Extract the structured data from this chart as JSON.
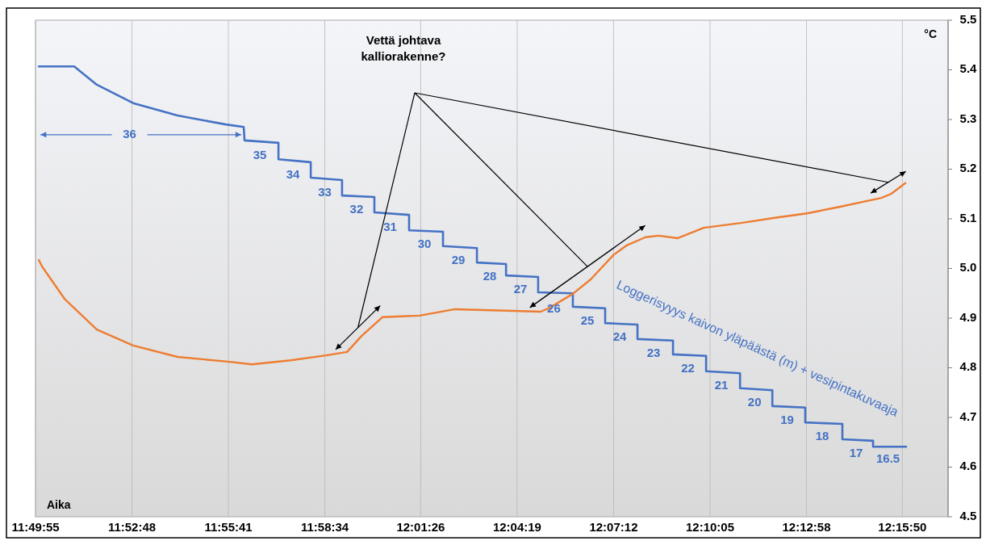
{
  "chart_data": {
    "type": "line",
    "xlabel": "Aika",
    "ylabel": "°C",
    "xlim": [
      11.831944,
      12.286667
    ],
    "xticks": [
      {
        "value": 11.831944,
        "label": "11:49:55"
      },
      {
        "value": 11.88,
        "label": "11:52:48"
      },
      {
        "value": 11.928056,
        "label": "11:55:41"
      },
      {
        "value": 11.976111,
        "label": "11:58:34"
      },
      {
        "value": 12.023889,
        "label": "12:01:26"
      },
      {
        "value": 12.071944,
        "label": "12:04:19"
      },
      {
        "value": 12.12,
        "label": "12:07:12"
      },
      {
        "value": 12.168056,
        "label": "12:10:05"
      },
      {
        "value": 12.216111,
        "label": "12:12:58"
      },
      {
        "value": 12.263889,
        "label": "12:15:50"
      }
    ],
    "ylim": [
      4.5,
      5.5
    ],
    "yticks": [
      4.5,
      4.6,
      4.7,
      4.8,
      4.9,
      {
        "value": 5,
        "label": "5.0"
      },
      5.1,
      5.2,
      5.3,
      5.4,
      5.5
    ],
    "grid": "x",
    "legend": false,
    "series": [
      {
        "name": "Loggerisyyys kaivon yläpäästä (m) + vesipintakuvaaja",
        "color": "#4472c4",
        "x": [
          11.8336,
          11.8512,
          11.8625,
          11.8806,
          11.9027,
          11.9268,
          11.9357,
          11.9361,
          11.953,
          11.953,
          11.9691,
          11.9691,
          11.9847,
          11.9847,
          12.0008,
          12.0008,
          12.0181,
          12.0181,
          12.035,
          12.035,
          12.0519,
          12.0519,
          12.0664,
          12.0664,
          12.0824,
          12.0824,
          12.0997,
          12.0997,
          12.1158,
          12.1158,
          12.1319,
          12.1319,
          12.1496,
          12.1496,
          12.1661,
          12.1661,
          12.183,
          12.183,
          12.1991,
          12.1991,
          12.2155,
          12.2155,
          12.234,
          12.234,
          12.2493,
          12.2493,
          12.2658
        ],
        "values": [
          5.407,
          5.407,
          5.37,
          5.333,
          5.308,
          5.29,
          5.285,
          5.258,
          5.253,
          5.22,
          5.214,
          5.183,
          5.178,
          5.147,
          5.144,
          5.113,
          5.108,
          5.077,
          5.074,
          5.045,
          5.041,
          5.012,
          5.009,
          4.986,
          4.983,
          4.952,
          4.95,
          4.923,
          4.92,
          4.89,
          4.887,
          4.858,
          4.855,
          4.827,
          4.824,
          4.793,
          4.789,
          4.759,
          4.755,
          4.723,
          4.72,
          4.69,
          4.687,
          4.656,
          4.653,
          4.641,
          4.641
        ]
      },
      {
        "color": "#ed7d31",
        "x": [
          11.8336,
          11.8352,
          11.8464,
          11.8625,
          11.8806,
          11.9027,
          11.9288,
          11.9397,
          11.959,
          11.9767,
          11.9872,
          11.9944,
          12.0048,
          12.0233,
          12.041,
          12.0664,
          12.0837,
          12.0877,
          12.0997,
          12.1086,
          12.1199,
          12.1263,
          12.1359,
          12.1424,
          12.152,
          12.1649,
          12.1842,
          12.2003,
          12.2164,
          12.2325,
          12.2534,
          12.2582,
          12.2654
        ],
        "values": [
          5.017,
          5.004,
          4.939,
          4.877,
          4.845,
          4.822,
          4.812,
          4.807,
          4.815,
          4.825,
          4.832,
          4.864,
          4.902,
          4.905,
          4.918,
          4.915,
          4.913,
          4.92,
          4.949,
          4.978,
          5.027,
          5.046,
          5.063,
          5.066,
          5.061,
          5.082,
          5.092,
          5.102,
          5.111,
          5.124,
          5.142,
          5.15,
          5.172
        ]
      }
    ],
    "annotations": [
      "Vettä johtava kalliorakenne?",
      "36",
      "35",
      "34",
      "33",
      "32",
      "31",
      "30",
      "29",
      "28",
      "27",
      "26",
      "25",
      "24",
      "23",
      "22",
      "21",
      "20",
      "19",
      "18",
      "17",
      "16.5"
    ]
  }
}
